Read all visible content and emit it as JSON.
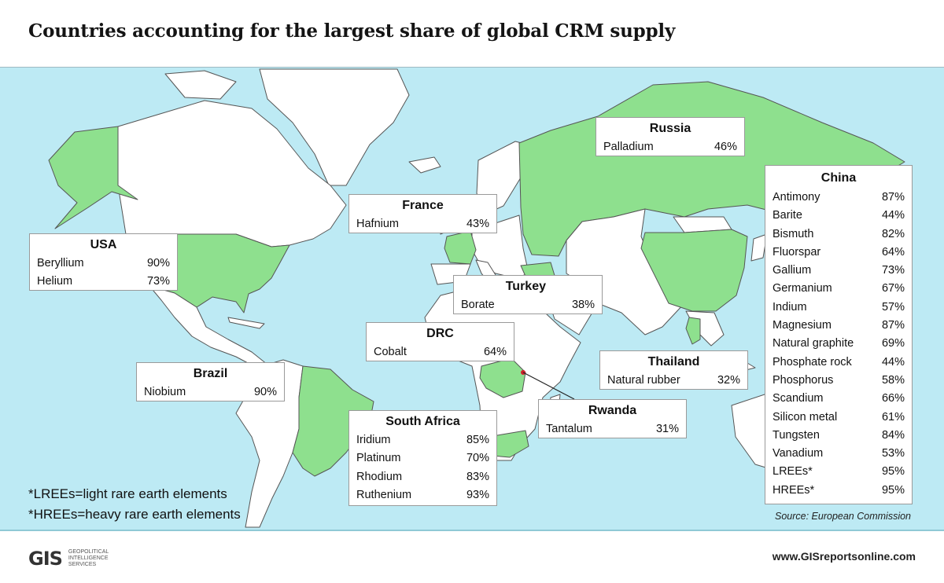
{
  "title": "Countries accounting for the largest share of global CRM supply",
  "colors": {
    "ocean": "#bdeaf4",
    "land": "#ffffff",
    "highlight": "#8ee08e",
    "border": "#555555",
    "marker": "#d0202a"
  },
  "callouts": {
    "russia": {
      "country": "Russia",
      "items": [
        {
          "material": "Palladium",
          "share": "46%"
        }
      ]
    },
    "france": {
      "country": "France",
      "items": [
        {
          "material": "Hafnium",
          "share": "43%"
        }
      ]
    },
    "usa": {
      "country": "USA",
      "items": [
        {
          "material": "Beryllium",
          "share": "90%"
        },
        {
          "material": "Helium",
          "share": "73%"
        }
      ]
    },
    "turkey": {
      "country": "Turkey",
      "items": [
        {
          "material": "Borate",
          "share": "38%"
        }
      ]
    },
    "drc": {
      "country": "DRC",
      "items": [
        {
          "material": "Cobalt",
          "share": "64%"
        }
      ]
    },
    "brazil": {
      "country": "Brazil",
      "items": [
        {
          "material": "Niobium",
          "share": "90%"
        }
      ]
    },
    "thailand": {
      "country": "Thailand",
      "items": [
        {
          "material": "Natural rubber",
          "share": "32%"
        }
      ]
    },
    "rwanda": {
      "country": "Rwanda",
      "items": [
        {
          "material": "Tantalum",
          "share": "31%"
        }
      ]
    },
    "south_africa": {
      "country": "South Africa",
      "items": [
        {
          "material": "Iridium",
          "share": "85%"
        },
        {
          "material": "Platinum",
          "share": "70%"
        },
        {
          "material": "Rhodium",
          "share": "83%"
        },
        {
          "material": "Ruthenium",
          "share": "93%"
        }
      ]
    },
    "china": {
      "country": "China",
      "items": [
        {
          "material": "Antimony",
          "share": "87%"
        },
        {
          "material": "Barite",
          "share": "44%"
        },
        {
          "material": "Bismuth",
          "share": "82%"
        },
        {
          "material": "Fluorspar",
          "share": "64%"
        },
        {
          "material": "Gallium",
          "share": "73%"
        },
        {
          "material": "Germanium",
          "share": "67%"
        },
        {
          "material": "Indium",
          "share": "57%"
        },
        {
          "material": "Magnesium",
          "share": "87%"
        },
        {
          "material": "Natural graphite",
          "share": "69%"
        },
        {
          "material": "Phosphate rock",
          "share": "44%"
        },
        {
          "material": "Phosphorus",
          "share": "58%"
        },
        {
          "material": "Scandium",
          "share": "66%"
        },
        {
          "material": "Silicon metal",
          "share": "61%"
        },
        {
          "material": "Tungsten",
          "share": "84%"
        },
        {
          "material": "Vanadium",
          "share": "53%"
        },
        {
          "material": "LREEs*",
          "share": "95%"
        },
        {
          "material": "HREEs*",
          "share": "95%"
        }
      ]
    }
  },
  "notes": {
    "lree": "*LREEs=light rare earth elements",
    "hree": "*HREEs=heavy rare earth elements"
  },
  "source": "Source: European Commission",
  "footer": {
    "logo_text": "GIS",
    "logo_tagline": [
      "GEOPOLITICAL",
      "INTELLIGENCE",
      "SERVICES"
    ],
    "website": "www.GISreportsonline.com"
  }
}
